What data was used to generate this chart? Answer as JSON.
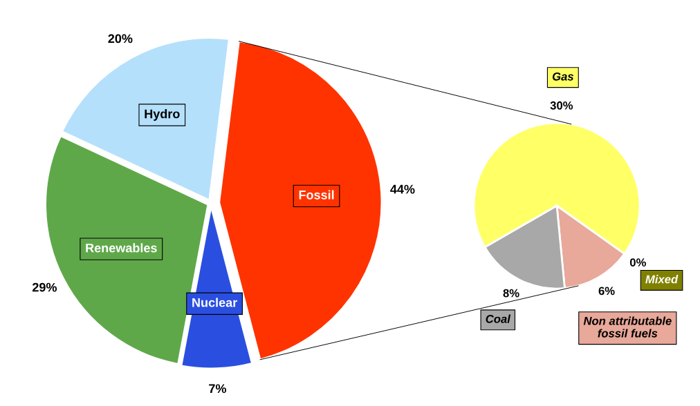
{
  "chart_data": [
    {
      "type": "pie",
      "categories": [
        "Fossil",
        "Nuclear",
        "Renewables",
        "Hydro"
      ],
      "values": [
        44,
        7,
        29,
        20
      ],
      "colors": [
        "#ff3300",
        "#2a4fe0",
        "#5fa84a",
        "#b5e0fc"
      ],
      "value_labels": [
        "44%",
        "7%",
        "29%",
        "20%"
      ]
    },
    {
      "type": "pie",
      "categories": [
        "Gas",
        "Mixed",
        "Non attributable fossil fuels",
        "Coal"
      ],
      "values": [
        30,
        0,
        6,
        8
      ],
      "colors": [
        "#ffff66",
        "#808000",
        "#e8a89a",
        "#a8a8a8"
      ],
      "value_labels": [
        "30%",
        "0%",
        "6%",
        "8%"
      ]
    }
  ]
}
